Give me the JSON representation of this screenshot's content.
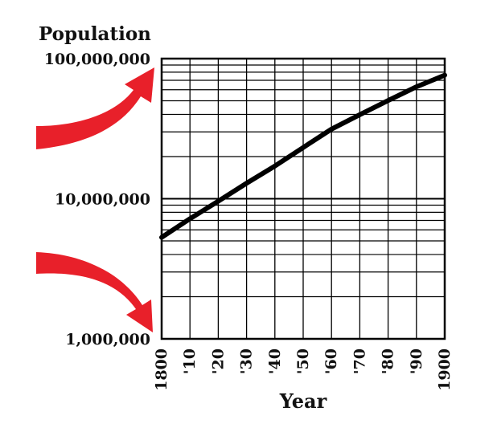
{
  "chart_data": {
    "type": "line",
    "title": "",
    "ylabel": "Population",
    "xlabel": "Year",
    "yscale": "log",
    "ylim": [
      1000000,
      100000000
    ],
    "xlim": [
      1800,
      1900
    ],
    "y_tick_labels": [
      "1,000,000",
      "10,000,000",
      "100,000,000"
    ],
    "y_tick_values": [
      1000000,
      10000000,
      100000000
    ],
    "x_tick_labels": [
      "1800",
      "'10",
      "'20",
      "'30",
      "'40",
      "'50",
      "'60",
      "'70",
      "'80",
      "'90",
      "1900"
    ],
    "x_tick_values": [
      1800,
      1810,
      1820,
      1830,
      1840,
      1850,
      1860,
      1870,
      1880,
      1890,
      1900
    ],
    "grid": true,
    "series": [
      {
        "x": [
          1800,
          1810,
          1820,
          1830,
          1840,
          1850,
          1860,
          1870,
          1880,
          1890,
          1900
        ],
        "y": [
          5300000,
          7200000,
          9600000,
          12900000,
          17100000,
          23200000,
          31400000,
          39800000,
          50200000,
          62900000,
          76200000
        ]
      }
    ],
    "colors": {
      "line": "#000000",
      "grid": "#000000",
      "arrow": "#e8202a"
    }
  }
}
